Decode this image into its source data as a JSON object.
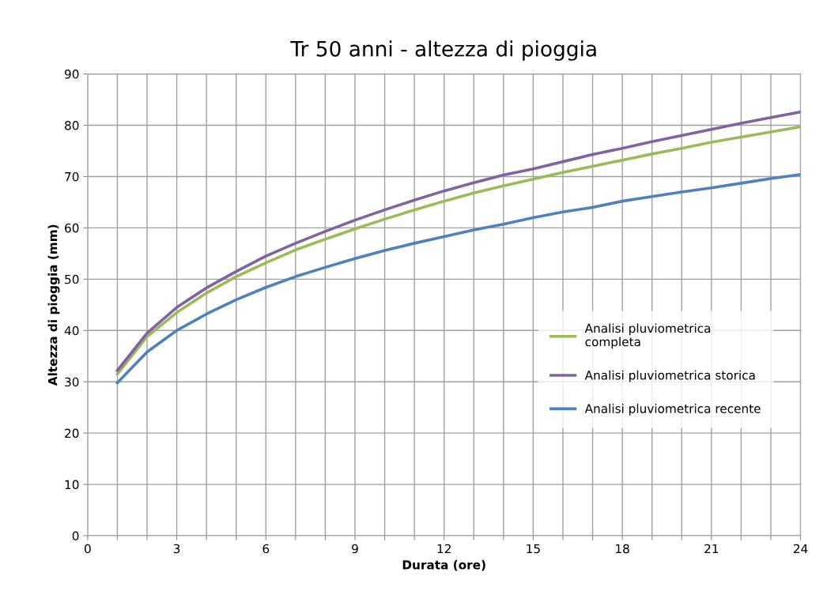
{
  "chart_data": {
    "type": "line",
    "title": "Tr 50 anni - altezza di pioggia",
    "xlabel": "Durata (ore)",
    "ylabel": "Altezza di pioggia (mm)",
    "x": [
      1,
      2,
      3,
      4,
      5,
      6,
      7,
      8,
      9,
      10,
      11,
      12,
      13,
      14,
      15,
      16,
      17,
      18,
      19,
      20,
      21,
      22,
      23,
      24
    ],
    "series": [
      {
        "name": "Analisi pluviometrica completa",
        "color": "#9bbb59",
        "values": [
          31.5,
          38.8,
          43.5,
          47.3,
          50.5,
          53.2,
          55.7,
          57.8,
          59.8,
          61.7,
          63.5,
          65.2,
          66.8,
          68.2,
          69.5,
          70.8,
          72.0,
          73.2,
          74.4,
          75.5,
          76.7,
          77.7,
          78.7,
          79.7
        ]
      },
      {
        "name": "Analisi pluviometrica storica",
        "color": "#8064a2",
        "values": [
          32.2,
          39.5,
          44.5,
          48.3,
          51.5,
          54.5,
          57.0,
          59.3,
          61.5,
          63.5,
          65.4,
          67.2,
          68.8,
          70.3,
          71.5,
          72.9,
          74.3,
          75.5,
          76.8,
          78.0,
          79.2,
          80.4,
          81.5,
          82.6
        ]
      },
      {
        "name": "Analisi pluviometrica recente",
        "color": "#4f81bd",
        "values": [
          29.8,
          35.8,
          40.0,
          43.2,
          46.0,
          48.4,
          50.5,
          52.3,
          54.0,
          55.6,
          57.0,
          58.3,
          59.6,
          60.7,
          62.0,
          63.1,
          64.0,
          65.2,
          66.1,
          67.0,
          67.8,
          68.7,
          69.6,
          70.4
        ]
      }
    ],
    "xlim": [
      0,
      24
    ],
    "xticks": [
      0,
      {
        "value": 1,
        "label": null
      },
      {
        "value": 2,
        "label": null
      },
      3,
      {
        "value": 4,
        "label": null
      },
      {
        "value": 5,
        "label": null
      },
      6,
      {
        "value": 7,
        "label": null
      },
      {
        "value": 8,
        "label": null
      },
      9,
      {
        "value": 10,
        "label": null
      },
      {
        "value": 11,
        "label": null
      },
      12,
      {
        "value": 13,
        "label": null
      },
      {
        "value": 14,
        "label": null
      },
      15,
      {
        "value": 16,
        "label": null
      },
      {
        "value": 17,
        "label": null
      },
      18,
      {
        "value": 19,
        "label": null
      },
      {
        "value": 20,
        "label": null
      },
      21,
      {
        "value": 22,
        "label": null
      },
      {
        "value": 23,
        "label": null
      },
      24
    ],
    "ylim": [
      0,
      90
    ],
    "yticks": [
      0,
      10,
      20,
      30,
      40,
      50,
      60,
      70,
      80,
      90
    ],
    "grid": true,
    "legend": "right",
    "marker": "none",
    "line_style": "solid"
  }
}
